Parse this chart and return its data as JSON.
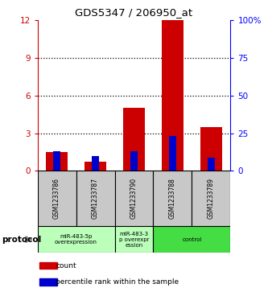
{
  "title": "GDS5347 / 206950_at",
  "samples": [
    "GSM1233786",
    "GSM1233787",
    "GSM1233790",
    "GSM1233788",
    "GSM1233789"
  ],
  "red_values": [
    1.5,
    0.75,
    5.0,
    12.0,
    3.5
  ],
  "blue_values": [
    13,
    10,
    13,
    23,
    9
  ],
  "ylim_left": [
    0,
    12
  ],
  "ylim_right": [
    0,
    100
  ],
  "yticks_left": [
    0,
    3,
    6,
    9,
    12
  ],
  "yticks_right": [
    0,
    25,
    50,
    75,
    100
  ],
  "ytick_labels_right": [
    "0",
    "25",
    "50",
    "75",
    "100%"
  ],
  "red_color": "#cc0000",
  "blue_color": "#0000cc",
  "protocol_label": "protocol",
  "legend_red": "count",
  "legend_blue": "percentile rank within the sample",
  "bg_color": "#ffffff",
  "label_box_color": "#c8c8c8",
  "groups": [
    {
      "start": 0,
      "end": 1,
      "label": "miR-483-5p\noverexpression",
      "color": "#bbffbb"
    },
    {
      "start": 2,
      "end": 2,
      "label": "miR-483-3\np overexpr\nession",
      "color": "#bbffbb"
    },
    {
      "start": 3,
      "end": 4,
      "label": "control",
      "color": "#44dd44"
    }
  ]
}
